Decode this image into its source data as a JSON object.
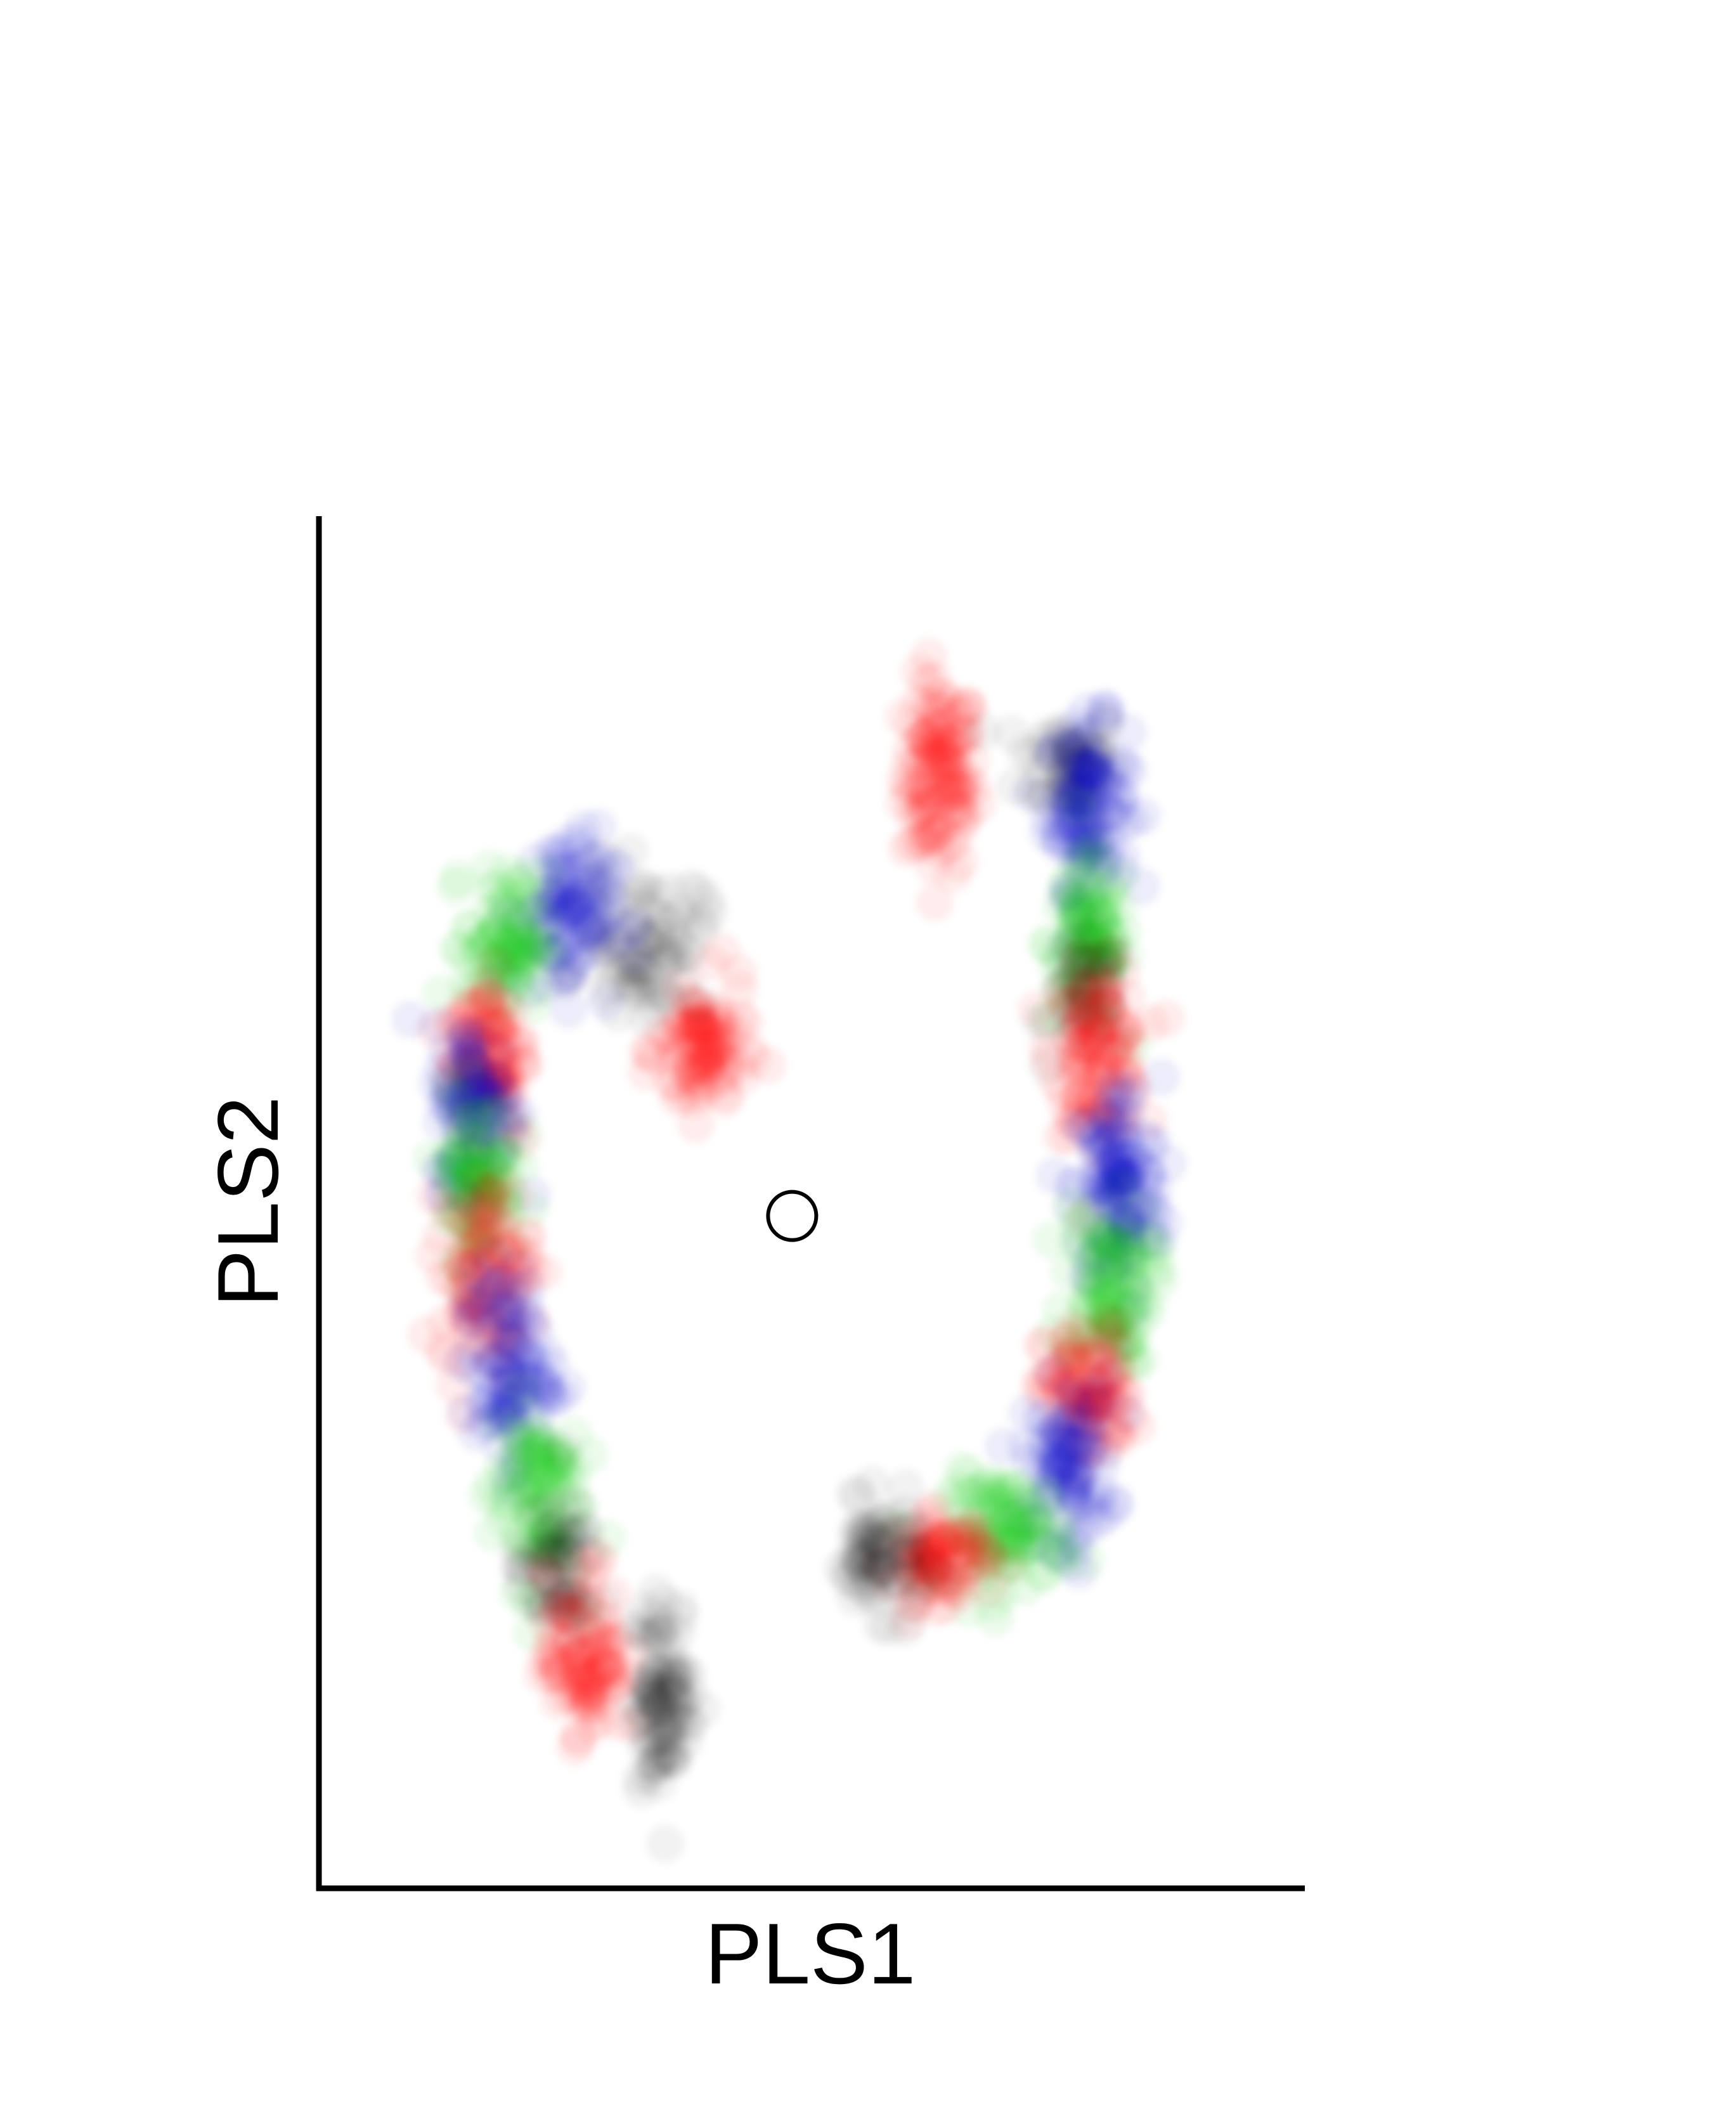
{
  "chart_data": {
    "type": "scatter",
    "title": "",
    "xlabel": "PLS1",
    "ylabel": "PLS2",
    "xlim": [
      0,
      10
    ],
    "ylim": [
      0,
      10
    ],
    "grid": false,
    "legend": "none",
    "ticks": "none",
    "colors": {
      "red": "#ff0000",
      "green": "#00cc00",
      "blue": "#0000cc",
      "black": "#000000",
      "center": "#000000"
    },
    "center_point": {
      "x": 4.8,
      "y": 4.9,
      "marker": "open-circle"
    },
    "clusters": [
      {
        "color": "red",
        "x": 6.3,
        "y": 8.1,
        "sx": 0.18,
        "sy": 0.35,
        "n": 120
      },
      {
        "color": "black",
        "x": 7.6,
        "y": 8.2,
        "sx": 0.25,
        "sy": 0.2,
        "n": 60
      },
      {
        "color": "blue",
        "x": 7.8,
        "y": 7.9,
        "sx": 0.2,
        "sy": 0.3,
        "n": 120
      },
      {
        "color": "green",
        "x": 7.8,
        "y": 6.9,
        "sx": 0.2,
        "sy": 0.3,
        "n": 100
      },
      {
        "color": "black",
        "x": 7.8,
        "y": 6.5,
        "sx": 0.18,
        "sy": 0.2,
        "n": 50
      },
      {
        "color": "red",
        "x": 7.9,
        "y": 6.1,
        "sx": 0.22,
        "sy": 0.3,
        "n": 110
      },
      {
        "color": "blue",
        "x": 8.1,
        "y": 5.1,
        "sx": 0.22,
        "sy": 0.4,
        "n": 130
      },
      {
        "color": "green",
        "x": 8.0,
        "y": 4.4,
        "sx": 0.22,
        "sy": 0.3,
        "n": 110
      },
      {
        "color": "red",
        "x": 7.8,
        "y": 3.6,
        "sx": 0.22,
        "sy": 0.25,
        "n": 100
      },
      {
        "color": "blue",
        "x": 7.6,
        "y": 3.1,
        "sx": 0.22,
        "sy": 0.3,
        "n": 100
      },
      {
        "color": "green",
        "x": 7.0,
        "y": 2.6,
        "sx": 0.3,
        "sy": 0.2,
        "n": 100
      },
      {
        "color": "red",
        "x": 6.3,
        "y": 2.4,
        "sx": 0.25,
        "sy": 0.15,
        "n": 90
      },
      {
        "color": "black",
        "x": 5.7,
        "y": 2.4,
        "sx": 0.22,
        "sy": 0.2,
        "n": 80
      },
      {
        "color": "red",
        "x": 3.9,
        "y": 6.1,
        "sx": 0.22,
        "sy": 0.25,
        "n": 100
      },
      {
        "color": "black",
        "x": 3.3,
        "y": 6.9,
        "sx": 0.3,
        "sy": 0.25,
        "n": 80
      },
      {
        "color": "blue",
        "x": 2.5,
        "y": 7.1,
        "sx": 0.25,
        "sy": 0.3,
        "n": 100
      },
      {
        "color": "green",
        "x": 1.9,
        "y": 6.9,
        "sx": 0.2,
        "sy": 0.25,
        "n": 90
      },
      {
        "color": "red",
        "x": 1.7,
        "y": 6.1,
        "sx": 0.2,
        "sy": 0.3,
        "n": 100
      },
      {
        "color": "blue",
        "x": 1.6,
        "y": 5.7,
        "sx": 0.2,
        "sy": 0.3,
        "n": 100
      },
      {
        "color": "green",
        "x": 1.6,
        "y": 5.2,
        "sx": 0.2,
        "sy": 0.3,
        "n": 100
      },
      {
        "color": "red",
        "x": 1.7,
        "y": 4.5,
        "sx": 0.22,
        "sy": 0.35,
        "n": 110
      },
      {
        "color": "blue",
        "x": 1.9,
        "y": 3.8,
        "sx": 0.22,
        "sy": 0.35,
        "n": 110
      },
      {
        "color": "green",
        "x": 2.2,
        "y": 2.9,
        "sx": 0.22,
        "sy": 0.35,
        "n": 100
      },
      {
        "color": "black",
        "x": 2.4,
        "y": 2.3,
        "sx": 0.2,
        "sy": 0.25,
        "n": 70
      },
      {
        "color": "red",
        "x": 2.7,
        "y": 1.7,
        "sx": 0.2,
        "sy": 0.3,
        "n": 100
      },
      {
        "color": "black",
        "x": 3.5,
        "y": 1.4,
        "sx": 0.15,
        "sy": 0.35,
        "n": 100
      }
    ]
  }
}
